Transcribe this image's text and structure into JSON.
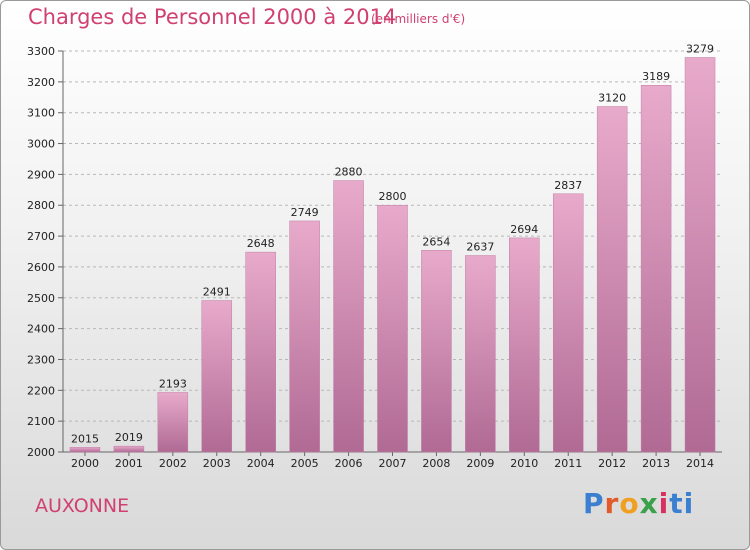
{
  "header": {
    "title": "Charges de Personnel 2000 à 2014",
    "subtitle": "(en milliers d'€)"
  },
  "footer": {
    "location": "AUXONNE",
    "brand_letters": [
      "P",
      "r",
      "o",
      "x",
      "i",
      "ti"
    ]
  },
  "colors": {
    "title": "#d04070",
    "bar_light": "#e8aacb",
    "bar_dark": "#b06a94"
  },
  "chart_data": {
    "type": "bar",
    "title": "Charges de Personnel 2000 à 2014",
    "subtitle": "(en milliers d'€)",
    "categories": [
      "2000",
      "2001",
      "2002",
      "2003",
      "2004",
      "2005",
      "2006",
      "2007",
      "2008",
      "2009",
      "2010",
      "2011",
      "2012",
      "2013",
      "2014"
    ],
    "values": [
      2015,
      2019,
      2193,
      2491,
      2648,
      2749,
      2880,
      2800,
      2654,
      2637,
      2694,
      2837,
      3120,
      3189,
      3279
    ],
    "ylim": [
      2000,
      3300
    ],
    "yticks": [
      2000,
      2100,
      2200,
      2300,
      2400,
      2500,
      2600,
      2700,
      2800,
      2900,
      3000,
      3100,
      3200,
      3300
    ],
    "grid": true,
    "grid_style": "dashed horizontal"
  }
}
